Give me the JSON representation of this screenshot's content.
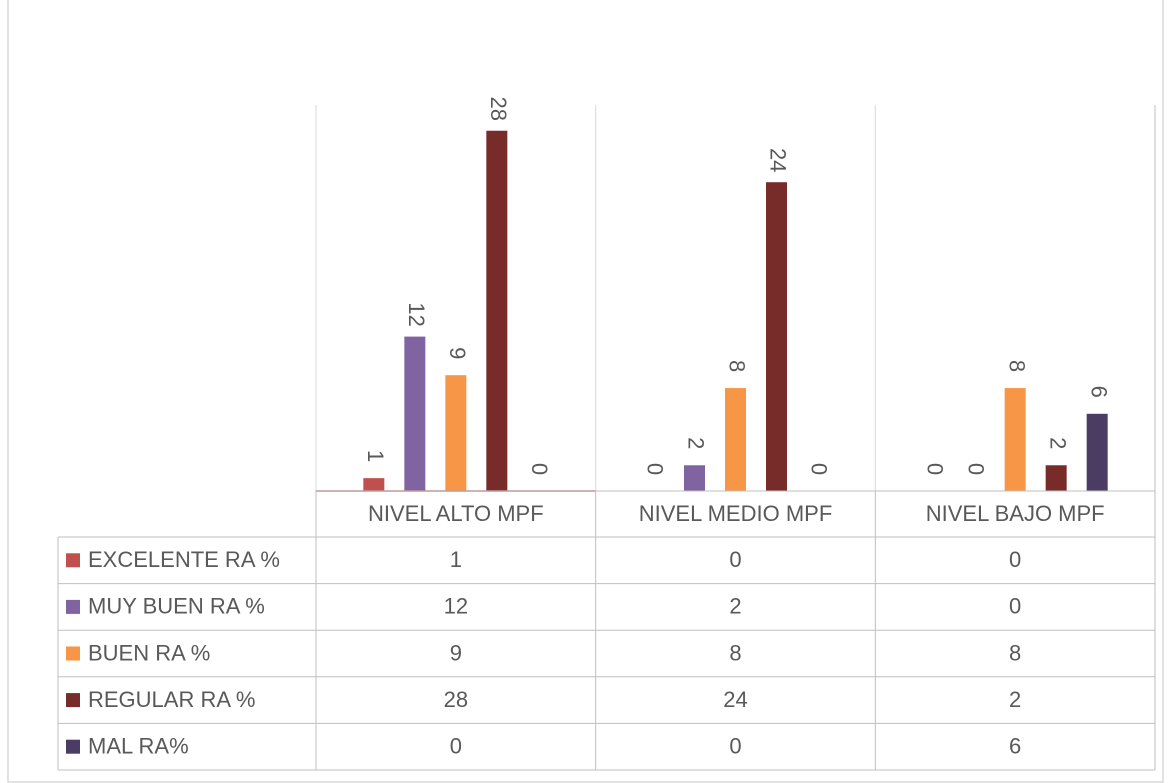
{
  "chart_data": {
    "type": "bar",
    "categories": [
      "NIVEL ALTO MPF",
      "NIVEL MEDIO MPF",
      "NIVEL BAJO MPF"
    ],
    "series": [
      {
        "name": "EXCELENTE RA %",
        "color": "#c0504d",
        "values": [
          1,
          0,
          0
        ]
      },
      {
        "name": "MUY BUEN RA %",
        "color": "#8064a2",
        "values": [
          12,
          2,
          0
        ]
      },
      {
        "name": "BUEN RA %",
        "color": "#f79646",
        "values": [
          9,
          8,
          8
        ]
      },
      {
        "name": "REGULAR RA %",
        "color": "#772c2a",
        "values": [
          28,
          24,
          2
        ]
      },
      {
        "name": "MAL RA%",
        "color": "#4a3c63",
        "values": [
          0,
          0,
          6
        ]
      }
    ],
    "ylim": [
      0,
      30
    ],
    "data_table": true
  }
}
